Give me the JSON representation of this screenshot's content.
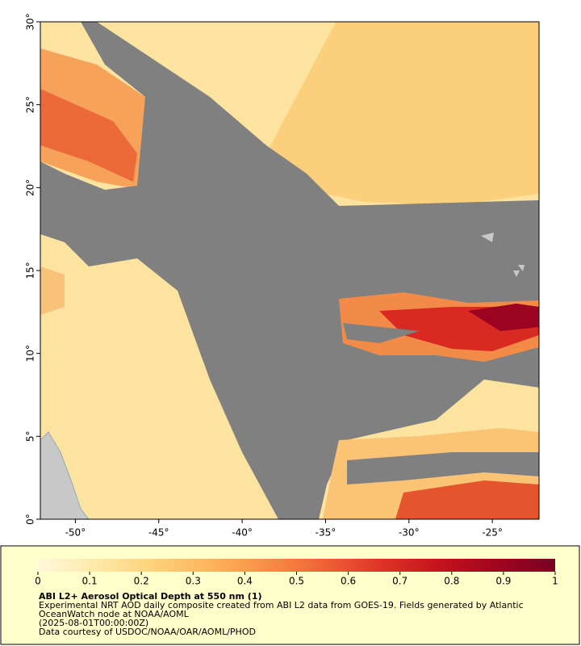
{
  "chart_data": {
    "type": "map",
    "xlim": [
      -52.1,
      -22.2
    ],
    "ylim": [
      0,
      30
    ],
    "xticks": [
      {
        "value": -50,
        "label": "-50°"
      },
      {
        "value": -45,
        "label": "-45°"
      },
      {
        "value": -40,
        "label": "-40°"
      },
      {
        "value": -35,
        "label": "-35°"
      },
      {
        "value": -30,
        "label": "-30°"
      },
      {
        "value": -25,
        "label": "-25°"
      }
    ],
    "yticks": [
      {
        "value": 0,
        "label": "0°"
      },
      {
        "value": 5,
        "label": "5°"
      },
      {
        "value": 10,
        "label": "10°"
      },
      {
        "value": 15,
        "label": "15°"
      },
      {
        "value": 20,
        "label": "20°"
      },
      {
        "value": 25,
        "label": "25°"
      },
      {
        "value": 30,
        "label": "30°"
      }
    ],
    "colorbar": {
      "lim": [
        0,
        1
      ],
      "ticks": [
        0,
        0.1,
        0.2,
        0.3,
        0.4,
        0.5,
        0.6,
        0.7,
        0.8,
        0.9,
        1
      ],
      "colors": [
        "#fff8dc",
        "#fee9a8",
        "#fdd27a",
        "#fdb45c",
        "#f88e45",
        "#ef6137",
        "#dd3226",
        "#c4121c",
        "#a0051f",
        "#7a0024"
      ]
    },
    "title": "ABI L2+ Aerosol Optical Depth at 550 nm (1)",
    "caption": [
      "Experimental NRT AOD daily composite created from ABI L2 data from GOES-19. Fields generated by Atlantic",
      "OceanWatch node at NOAA/AOML",
      "(2025-08-01T00:00:00Z)",
      "Data courtesy of USDOC/NOAA/OAR/AOML/PHOD"
    ]
  }
}
